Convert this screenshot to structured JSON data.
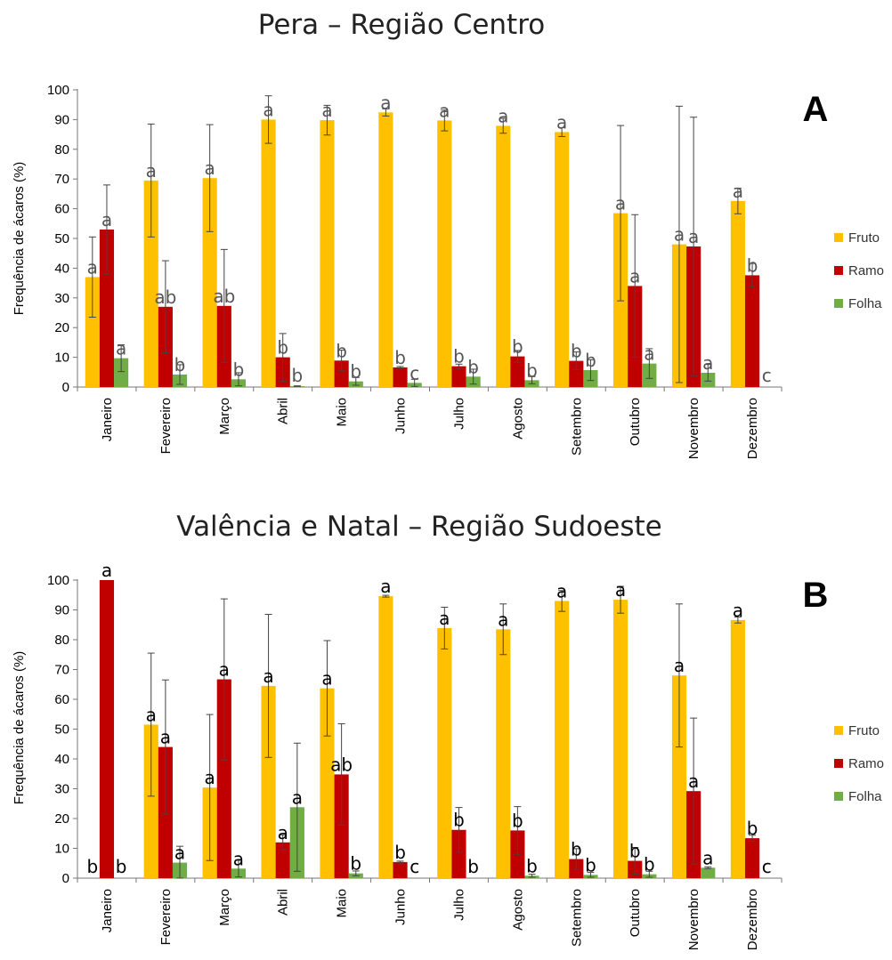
{
  "colors": {
    "Fruto": "#ffc000",
    "Ramo": "#c00000",
    "Folha": "#70ad47"
  },
  "chart_data": [
    {
      "type": "bar",
      "title": "Pera – Região Centro",
      "panel": "A",
      "ylabel": "Frequência de ácaros (%)",
      "xlabel": "",
      "ylim": [
        0,
        100
      ],
      "yticks": [
        0,
        10,
        20,
        30,
        40,
        50,
        60,
        70,
        80,
        90,
        100
      ],
      "grid": false,
      "legend": "right",
      "categories": [
        "Janeiro",
        "Fevereiro",
        "Março",
        "Abril",
        "Maio",
        "Junho",
        "Julho",
        "Agosto",
        "Setembro",
        "Outubro",
        "Novembro",
        "Dezembro"
      ],
      "series": [
        {
          "name": "Fruto",
          "values": [
            37,
            69.5,
            70.3,
            90,
            89.8,
            92.4,
            89.7,
            87.9,
            85.8,
            58.5,
            48,
            62.6
          ],
          "errors": [
            13.5,
            19,
            18,
            8,
            5,
            1.2,
            3.5,
            2.5,
            1.5,
            29.5,
            46.5,
            4.3
          ],
          "letters": [
            "a",
            "a",
            "a",
            "a",
            "a",
            "a",
            "a",
            "a",
            "a",
            "a",
            "a",
            "a"
          ]
        },
        {
          "name": "Ramo",
          "values": [
            53,
            27,
            27.3,
            10,
            8.9,
            6.6,
            7,
            10.3,
            8.8,
            34,
            47.3,
            37.6
          ],
          "errors": [
            15,
            15.5,
            19,
            8,
            3.5,
            0.3,
            0.7,
            2,
            3,
            24,
            43.5,
            4
          ],
          "letters": [
            "a",
            "ab",
            "ab",
            "b",
            "b",
            "b",
            "b",
            "b",
            "b",
            "a",
            "a",
            "b"
          ]
        },
        {
          "name": "Folha",
          "values": [
            9.7,
            4.2,
            2.6,
            0.3,
            1.9,
            1.4,
            3.5,
            2.3,
            5.7,
            7.9,
            4.8,
            0
          ],
          "errors": [
            4.5,
            3.3,
            2.2,
            0.1,
            1.3,
            1.2,
            2.5,
            1.2,
            3.5,
            5,
            2.8,
            0
          ],
          "letters": [
            "a",
            "b",
            "b",
            "b",
            "b",
            "c",
            "b",
            "b",
            "b",
            "a",
            "a",
            "c"
          ]
        }
      ]
    },
    {
      "type": "bar",
      "title": "Valência e Natal – Região Sudoeste",
      "panel": "B",
      "ylabel": "Frequência de ácaros (%)",
      "xlabel": "",
      "ylim": [
        0,
        100
      ],
      "yticks": [
        0,
        10,
        20,
        30,
        40,
        50,
        60,
        70,
        80,
        90,
        100
      ],
      "grid": false,
      "legend": "right",
      "categories": [
        "Janeiro",
        "Fevereiro",
        "Março",
        "Abril",
        "Maio",
        "Junho",
        "Julho",
        "Agosto",
        "Setembro",
        "Outubro",
        "Novembro",
        "Dezembro"
      ],
      "series": [
        {
          "name": "Fruto",
          "values": [
            0,
            51.5,
            30.4,
            64.5,
            63.7,
            94.6,
            83.9,
            83.5,
            93,
            93.4,
            68,
            86.6
          ],
          "errors": [
            0,
            24,
            24.5,
            24,
            16,
            0.3,
            7,
            8.5,
            3.5,
            4.5,
            24,
            1
          ],
          "letters": [
            "b",
            "a",
            "a",
            "a",
            "a",
            "a",
            "a",
            "a",
            "a",
            "a",
            "a",
            "a"
          ]
        },
        {
          "name": "Ramo",
          "values": [
            100,
            44,
            66.7,
            12,
            34.8,
            5.4,
            16.2,
            16,
            6.4,
            5.8,
            29.2,
            13.4
          ],
          "errors": [
            0,
            22.5,
            27,
            2.5,
            17,
            0.3,
            7.5,
            8,
            3.5,
            4.5,
            24.5,
            1
          ],
          "letters": [
            "a",
            "a",
            "a",
            "a",
            "ab",
            "b",
            "b",
            "b",
            "b",
            "b",
            "a",
            "b"
          ]
        },
        {
          "name": "Folha",
          "values": [
            0,
            5.2,
            3.2,
            23.8,
            1.6,
            0,
            0,
            0.8,
            1.1,
            1.3,
            3.5,
            0
          ],
          "errors": [
            0,
            5.5,
            2.8,
            21.5,
            0.8,
            0,
            0,
            0.5,
            0.8,
            1,
            0.3,
            0
          ],
          "letters": [
            "b",
            "a",
            "a",
            "a",
            "b",
            "c",
            "b",
            "b",
            "b",
            "b",
            "a",
            "c"
          ]
        }
      ]
    }
  ]
}
